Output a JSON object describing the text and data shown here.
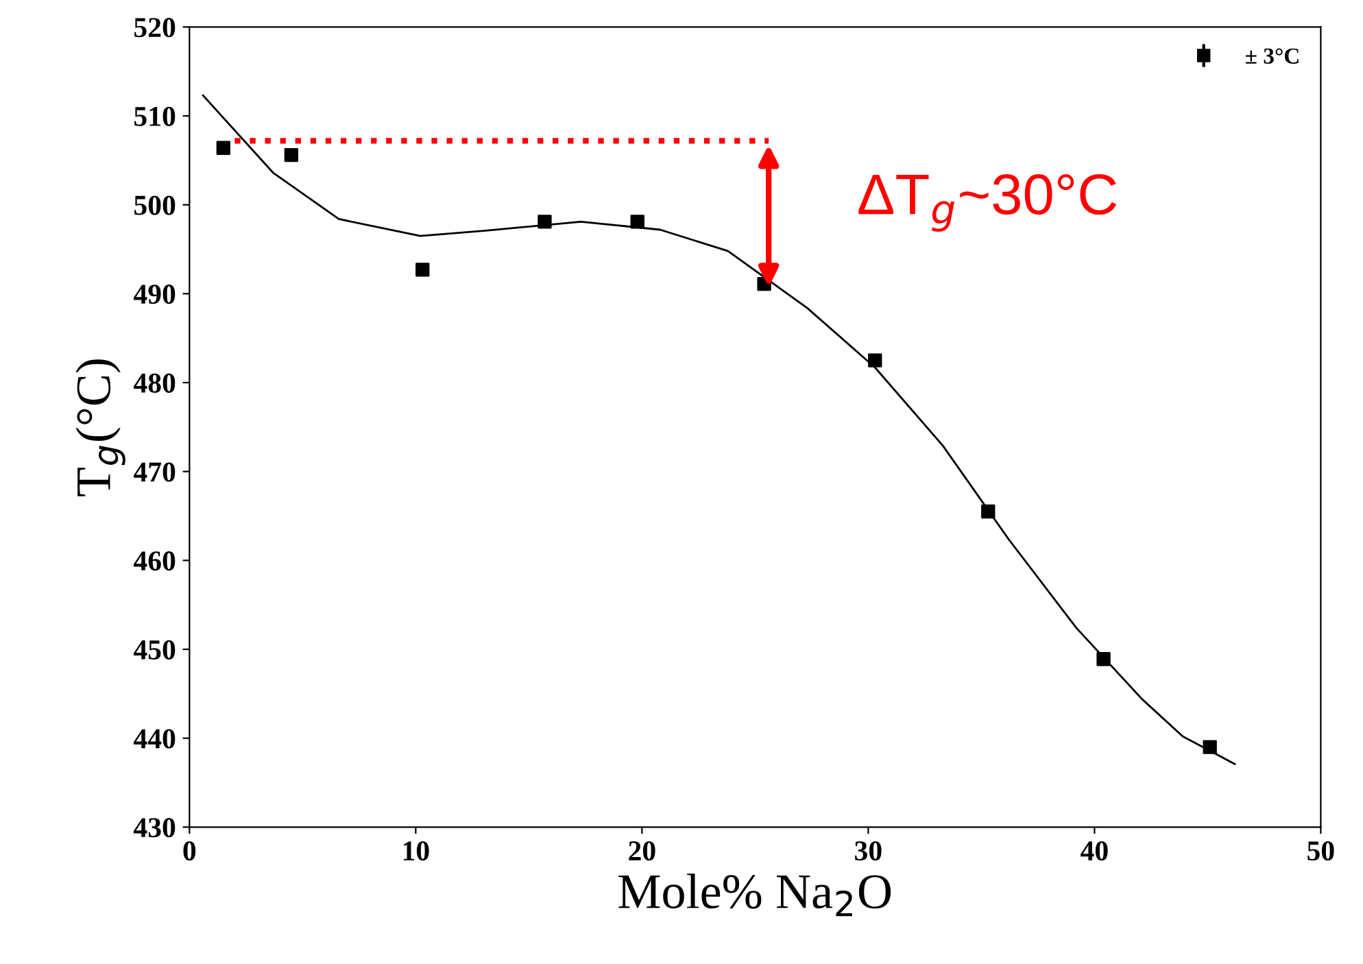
{
  "chart_data": {
    "type": "scatter",
    "xlabel": "Mole% Na$_{2}$O",
    "ylabel": "T$_{g}$(°C)",
    "xlim": [
      0,
      50
    ],
    "xticks": [
      0,
      10,
      20,
      30,
      40,
      50
    ],
    "ylim": [
      430,
      520
    ],
    "yticks": [
      430,
      440,
      450,
      460,
      470,
      480,
      490,
      500,
      510,
      520
    ],
    "grid": false,
    "legend": "top right",
    "series": [
      {
        "name": "± 3°C",
        "marker": "square",
        "color": "#000000",
        "x": [
          1.5,
          4.5,
          10.3,
          15.7,
          19.8,
          25.4,
          30.3,
          35.3,
          40.4,
          45.1
        ],
        "values": [
          506.4,
          505.6,
          492.7,
          498.1,
          498.1,
          491.1,
          482.5,
          465.5,
          448.9,
          439
        ]
      },
      {
        "type": "line",
        "color": "#000000",
        "line_style": "solid",
        "x": [
          0.6,
          3.7,
          6.6,
          10.2,
          13.1,
          17.3,
          20.8,
          23.8,
          27.3,
          30.3,
          33.3,
          36.2,
          39.2,
          42.1,
          43.9,
          46.2
        ],
        "values": [
          512.3,
          503.6,
          498.4,
          496.5,
          497.1,
          498.1,
          497.2,
          494.8,
          488.4,
          481.7,
          472.9,
          462.4,
          452.4,
          444.4,
          440.2,
          437.1
        ]
      },
      {
        "type": "line",
        "color": "#ff0000",
        "line_style": "dotted",
        "x": [
          2.0,
          25.6
        ],
        "values": [
          507.2,
          507.2
        ]
      }
    ],
    "annotations": [
      "ΔT$_{g}$~30°C"
    ]
  }
}
